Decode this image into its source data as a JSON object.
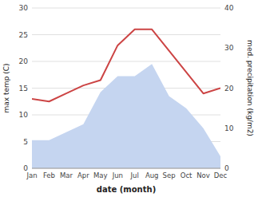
{
  "chart_data": {
    "type": "line",
    "xlabel": "date (month)",
    "ylabel": "max temp (C)",
    "y2label": "med. precipitation (kg/m2)",
    "categories": [
      "Jan",
      "Feb",
      "Mar",
      "Apr",
      "May",
      "Jun",
      "Jul",
      "Aug",
      "Sep",
      "Oct",
      "Nov",
      "Dec"
    ],
    "series": [
      {
        "type": "area",
        "axis": "y2",
        "color": "#c5d5f0",
        "values": [
          7,
          7,
          9,
          11,
          19,
          23,
          23,
          26,
          18,
          15,
          10,
          3
        ]
      },
      {
        "type": "line",
        "color": "#cc4444",
        "values": [
          13,
          12.5,
          14,
          15.5,
          16.5,
          23,
          26,
          26,
          22,
          18,
          14,
          15
        ]
      }
    ],
    "ylim": [
      0,
      30
    ],
    "yticks": [
      0,
      5,
      10,
      15,
      20,
      25,
      30
    ],
    "y2lim": [
      0,
      40
    ],
    "y2ticks": [
      0,
      10,
      20,
      30,
      40
    ],
    "grid": true
  }
}
